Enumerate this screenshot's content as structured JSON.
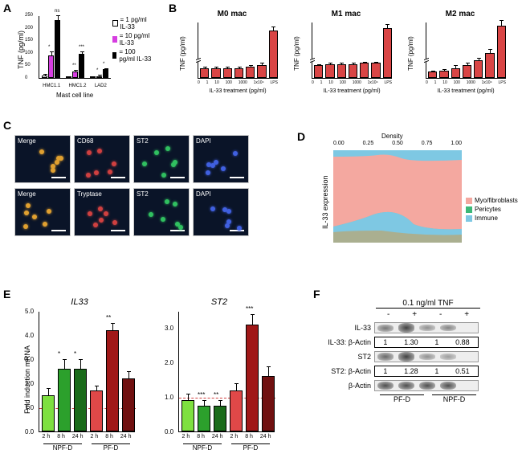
{
  "panelA": {
    "label": "A",
    "ylabel": "TNF (pg/ml)",
    "xlabel": "Mast cell line",
    "ymax": 250,
    "categories": [
      "HMC1.1",
      "HMC1.2",
      "LAD2"
    ],
    "legend": [
      "= 1 pg/ml IL-33",
      "= 10 pg/ml IL-33",
      "= 100 pg/ml IL-33"
    ],
    "legend_colors": [
      "#ffffff",
      "#d63ee0",
      "#000000"
    ],
    "groups": [
      {
        "vals": [
          10,
          90,
          230
        ],
        "err": [
          5,
          15,
          20
        ],
        "sig": [
          "",
          "*",
          "ns"
        ]
      },
      {
        "vals": [
          5,
          25,
          95
        ],
        "err": [
          3,
          8,
          12
        ],
        "sig": [
          "",
          "**",
          "***"
        ]
      },
      {
        "vals": [
          0,
          8,
          35
        ],
        "err": [
          0,
          4,
          5
        ],
        "sig": [
          "",
          "*",
          "*"
        ]
      }
    ]
  },
  "panelB": {
    "label": "B",
    "titles": [
      "M0 mac",
      "M1 mac",
      "M2 mac"
    ],
    "ylabel": "TNF (pg/ml)",
    "xlabel": "IL-33 treatment (pg/ml)",
    "categories": [
      "0",
      "1",
      "10",
      "100",
      "1000",
      "1x10⁴",
      "LPS"
    ],
    "bar_color": "#d94545",
    "charts": [
      {
        "vals": [
          8,
          8,
          8,
          8,
          9,
          10,
          38
        ],
        "err": [
          1,
          1,
          1,
          1,
          1,
          2,
          3
        ]
      },
      {
        "vals": [
          10,
          11,
          11,
          11,
          12,
          12,
          40
        ],
        "err": [
          1,
          1,
          1,
          1,
          1,
          1,
          3
        ]
      },
      {
        "vals": [
          5,
          6,
          8,
          10,
          14,
          20,
          42
        ],
        "err": [
          1,
          1,
          2,
          2,
          2,
          3,
          4
        ]
      }
    ],
    "ymax": 45
  },
  "panelC": {
    "label": "C",
    "row1": [
      "Merge",
      "CD68",
      "ST2",
      "DAPI"
    ],
    "row2": [
      "Merge",
      "Tryptase",
      "ST2",
      "DAPI"
    ]
  },
  "panelD": {
    "label": "D",
    "ylabel": "IL-33 expression",
    "xlabel": "Density",
    "xticks": [
      "0.00",
      "0.25",
      "0.50",
      "0.75",
      "1.00"
    ],
    "legend": [
      "Myo/fibroblasts",
      "Pericytes",
      "Immune"
    ],
    "legend_colors": [
      "#f4a8a0",
      "#3cb878",
      "#7ec8e3"
    ]
  },
  "panelE": {
    "label": "E",
    "ylabel": "Fold induction mRNA",
    "titles": [
      "IL33",
      "ST2"
    ],
    "categories": [
      "2 h",
      "8 h",
      "24 h",
      "2 h",
      "8 h",
      "24 h"
    ],
    "group_labels": [
      "NPF-D",
      "PF-D"
    ],
    "chart1": {
      "colors": [
        "#7ee040",
        "#2ca02c",
        "#1a6b1a",
        "#e04848",
        "#a01818",
        "#701010"
      ],
      "vals": [
        1.5,
        2.6,
        2.6,
        1.7,
        4.2,
        2.2
      ],
      "err": [
        0.3,
        0.4,
        0.4,
        0.2,
        0.3,
        0.3
      ],
      "sig": [
        "",
        "*",
        "*",
        "",
        "**",
        ""
      ],
      "ymax": 5.0
    },
    "chart2": {
      "colors": [
        "#7ee040",
        "#2ca02c",
        "#1a6b1a",
        "#e04848",
        "#a01818",
        "#701010"
      ],
      "vals": [
        0.9,
        0.75,
        0.75,
        1.2,
        3.1,
        1.6
      ],
      "err": [
        0.2,
        0.15,
        0.15,
        0.2,
        0.3,
        0.3
      ],
      "sig": [
        "",
        "***",
        "**",
        "",
        "***",
        ""
      ],
      "ymax": 3.5
    },
    "hline": 1.0
  },
  "panelF": {
    "label": "F",
    "title": "0.1 ng/ml TNF",
    "lane_headers": [
      "-",
      "+",
      "-",
      "+"
    ],
    "rows": [
      {
        "label": "IL-33",
        "intensities": [
          0.5,
          0.9,
          0.3,
          0.4
        ]
      },
      {
        "label": "IL-33: β-Actin",
        "values": [
          "1",
          "1.30",
          "1",
          "0.88"
        ]
      },
      {
        "label": "ST2",
        "intensities": [
          0.6,
          0.9,
          0.3,
          0.2
        ]
      },
      {
        "label": "ST2: β-Actin",
        "values": [
          "1",
          "1.28",
          "1",
          "0.51"
        ]
      },
      {
        "label": "β-Actin",
        "intensities": [
          0.8,
          0.8,
          0.8,
          0.8
        ]
      }
    ],
    "group_labels": [
      "PF-D",
      "NPF-D"
    ]
  }
}
